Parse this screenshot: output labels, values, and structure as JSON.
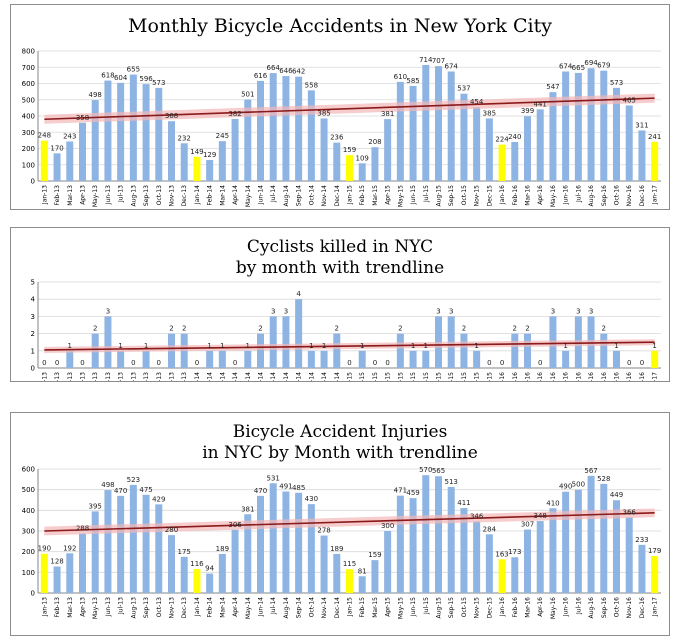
{
  "colors": {
    "bar": "#8eb4e3",
    "highlight": "#ffff00",
    "trend": "#8b1a1a",
    "band": "#f4b6b6",
    "grid": "#d9d9d9"
  },
  "months": [
    "Jan-13",
    "Feb-13",
    "Mar-13",
    "Apr-13",
    "May-13",
    "Jun-13",
    "Jul-13",
    "Aug-13",
    "Sep-13",
    "Oct-13",
    "Nov-13",
    "Dec-13",
    "Jan-14",
    "Feb-14",
    "Mar-14",
    "Apr-14",
    "May-14",
    "Jun-14",
    "Jul-14",
    "Aug-14",
    "Sep-14",
    "Oct-14",
    "Nov-14",
    "Dec-14",
    "Jan-15",
    "Feb-15",
    "Mar-15",
    "Apr-15",
    "May-15",
    "Jun-15",
    "Jul-15",
    "Aug-15",
    "Sep-15",
    "Oct-15",
    "Nov-15",
    "Dec-15",
    "Jan-16",
    "Feb-16",
    "Mar-16",
    "Apr-16",
    "May-16",
    "Jun-16",
    "Jul-16",
    "Aug-16",
    "Sep-16",
    "Oct-16",
    "Nov-16",
    "Dec-16",
    "Jan-17"
  ],
  "chart_data": [
    {
      "type": "bar",
      "title": "Monthly Bicycle Accidents in New York City",
      "title_lines": [
        "Monthly Bicycle Accidents in New York City"
      ],
      "ylim": [
        0,
        800
      ],
      "yticks": [
        0,
        100,
        200,
        300,
        400,
        500,
        600,
        700,
        800
      ],
      "values": [
        248,
        170,
        243,
        358,
        498,
        618,
        604,
        655,
        596,
        573,
        368,
        232,
        149,
        129,
        245,
        382,
        501,
        616,
        664,
        646,
        642,
        558,
        385,
        236,
        159,
        109,
        208,
        381,
        610,
        585,
        714,
        707,
        674,
        537,
        454,
        385,
        224,
        240,
        399,
        441,
        547,
        674,
        665,
        694,
        679,
        573,
        465,
        311,
        241
      ],
      "highlight": [
        0,
        12,
        24,
        36,
        48
      ],
      "trendline": [
        380,
        510
      ]
    },
    {
      "type": "bar",
      "title": "Cyclists killed in NYC by month with trendline",
      "title_lines": [
        "Cyclists killed in NYC",
        "by month with trendline"
      ],
      "ylim": [
        0,
        5
      ],
      "yticks": [
        0,
        1,
        2,
        3,
        4,
        5
      ],
      "values": [
        0,
        0,
        1,
        0,
        2,
        3,
        1,
        0,
        1,
        0,
        2,
        2,
        0,
        1,
        1,
        0,
        1,
        2,
        3,
        3,
        4,
        1,
        1,
        2,
        0,
        1,
        0,
        0,
        2,
        1,
        1,
        3,
        3,
        2,
        1,
        0,
        0,
        2,
        2,
        0,
        3,
        1,
        3,
        3,
        2,
        1,
        0,
        0,
        1
      ],
      "highlight": [
        0,
        12,
        24,
        36,
        48
      ],
      "trendline": [
        1.05,
        1.5
      ]
    },
    {
      "type": "bar",
      "title": "Bicycle Accident Injuries in NYC by Month with trendline",
      "title_lines": [
        "Bicycle Accident Injuries",
        "in NYC by Month with trendline"
      ],
      "ylim": [
        0,
        600
      ],
      "yticks": [
        0,
        100,
        200,
        300,
        400,
        500,
        600
      ],
      "values": [
        190,
        128,
        192,
        288,
        395,
        498,
        470,
        523,
        475,
        429,
        280,
        175,
        116,
        94,
        189,
        306,
        381,
        470,
        531,
        491,
        485,
        430,
        278,
        189,
        115,
        81,
        159,
        300,
        471,
        459,
        570,
        565,
        513,
        411,
        346,
        284,
        163,
        173,
        307,
        348,
        410,
        490,
        500,
        567,
        528,
        449,
        366,
        233,
        179
      ],
      "highlight": [
        0,
        12,
        24,
        36,
        48
      ],
      "trendline": [
        300,
        388
      ]
    }
  ]
}
